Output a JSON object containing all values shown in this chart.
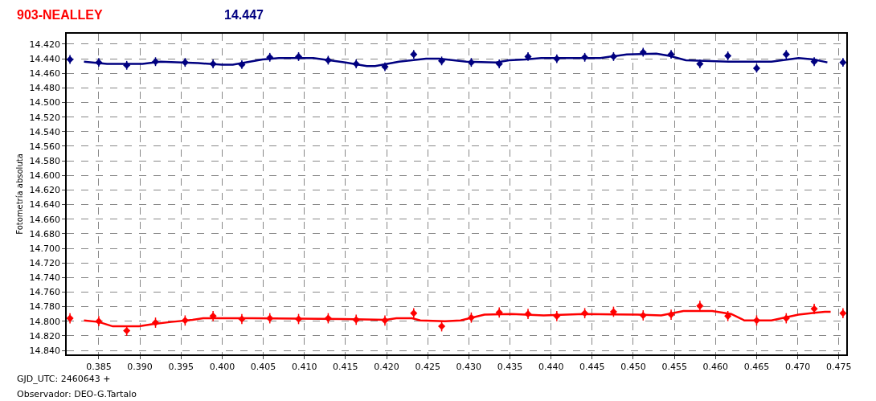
{
  "chart_data": {
    "type": "scatter",
    "title": "903-NEALLEY",
    "subtitle": "14.447",
    "ylabel": "Fotometría absoluta",
    "annotations": [
      "GJD_UTC: 2460643 +",
      "Observador: DEO-G.Tartalo"
    ],
    "xlim": [
      0.3811,
      0.4759
    ],
    "ylim": [
      14.8455,
      14.4057
    ],
    "xticks": [
      {
        "value": 0.385,
        "label": "0.385"
      },
      {
        "value": 0.39,
        "label": "0.390"
      },
      {
        "value": 0.395,
        "label": "0.395"
      },
      {
        "value": 0.4,
        "label": "0.400"
      },
      {
        "value": 0.405,
        "label": "0.405"
      },
      {
        "value": 0.41,
        "label": "0.410"
      },
      {
        "value": 0.415,
        "label": "0.415"
      },
      {
        "value": 0.42,
        "label": "0.420"
      },
      {
        "value": 0.425,
        "label": "0.425"
      },
      {
        "value": 0.43,
        "label": "0.430"
      },
      {
        "value": 0.435,
        "label": "0.435"
      },
      {
        "value": 0.44,
        "label": "0.440"
      },
      {
        "value": 0.445,
        "label": "0.445"
      },
      {
        "value": 0.45,
        "label": "0.450"
      },
      {
        "value": 0.455,
        "label": "0.455"
      },
      {
        "value": 0.46,
        "label": "0.460"
      },
      {
        "value": 0.465,
        "label": "0.465"
      },
      {
        "value": 0.47,
        "label": "0.470"
      },
      {
        "value": 0.475,
        "label": "0.475"
      }
    ],
    "yticks": [
      {
        "value": 14.42,
        "label": "14.420"
      },
      {
        "value": 14.44,
        "label": "14.440"
      },
      {
        "value": 14.46,
        "label": "14.460"
      },
      {
        "value": 14.48,
        "label": "14.480"
      },
      {
        "value": 14.5,
        "label": "14.500"
      },
      {
        "value": 14.52,
        "label": "14.520"
      },
      {
        "value": 14.54,
        "label": "14.540"
      },
      {
        "value": 14.56,
        "label": "14.560"
      },
      {
        "value": 14.58,
        "label": "14.580"
      },
      {
        "value": 14.6,
        "label": "14.600"
      },
      {
        "value": 14.62,
        "label": "14.620"
      },
      {
        "value": 14.64,
        "label": "14.640"
      },
      {
        "value": 14.66,
        "label": "14.660"
      },
      {
        "value": 14.68,
        "label": "14.680"
      },
      {
        "value": 14.7,
        "label": "14.700"
      },
      {
        "value": 14.72,
        "label": "14.720"
      },
      {
        "value": 14.74,
        "label": "14.740"
      },
      {
        "value": 14.76,
        "label": "14.760"
      },
      {
        "value": 14.78,
        "label": "14.780"
      },
      {
        "value": 14.8,
        "label": "14.800"
      },
      {
        "value": 14.82,
        "label": "14.820"
      },
      {
        "value": 14.84,
        "label": "14.840"
      }
    ],
    "grid": true,
    "series": [
      {
        "marker": "diamond",
        "color": "#000080",
        "x": [
          0.3815,
          0.385,
          0.3884,
          0.3919,
          0.3955,
          0.3989,
          0.4024,
          0.4058,
          0.4093,
          0.4129,
          0.4163,
          0.4198,
          0.4233,
          0.4267,
          0.4303,
          0.4337,
          0.4372,
          0.4407,
          0.4441,
          0.4476,
          0.4512,
          0.4546,
          0.4581,
          0.4615,
          0.465,
          0.4686,
          0.472,
          0.4755
        ],
        "values": [
          14.441,
          14.445,
          14.449,
          14.444,
          14.445,
          14.447,
          14.448,
          14.438,
          14.437,
          14.442,
          14.447,
          14.451,
          14.434,
          14.443,
          14.445,
          14.447,
          14.437,
          14.44,
          14.438,
          14.437,
          14.431,
          14.434,
          14.447,
          14.436,
          14.453,
          14.434,
          14.444,
          14.445
        ],
        "errors": [
          0.006,
          0.006,
          0.006,
          0.006,
          0.006,
          0.006,
          0.006,
          0.006,
          0.006,
          0.006,
          0.006,
          0.006,
          0.006,
          0.006,
          0.006,
          0.006,
          0.006,
          0.006,
          0.006,
          0.006,
          0.006,
          0.006,
          0.006,
          0.006,
          0.006,
          0.006,
          0.006,
          0.006
        ]
      },
      {
        "marker": "diamond",
        "color": "#ff0000",
        "x": [
          0.3815,
          0.385,
          0.3884,
          0.3919,
          0.3955,
          0.3989,
          0.4024,
          0.4058,
          0.4093,
          0.4129,
          0.4163,
          0.4198,
          0.4233,
          0.4267,
          0.4303,
          0.4337,
          0.4372,
          0.4407,
          0.4441,
          0.4476,
          0.4512,
          0.4546,
          0.4581,
          0.4615,
          0.465,
          0.4686,
          0.472,
          0.4755
        ],
        "values": [
          14.796,
          14.8,
          14.813,
          14.802,
          14.799,
          14.793,
          14.797,
          14.796,
          14.797,
          14.796,
          14.798,
          14.799,
          14.789,
          14.807,
          14.795,
          14.788,
          14.79,
          14.793,
          14.789,
          14.787,
          14.792,
          14.791,
          14.779,
          14.793,
          14.799,
          14.796,
          14.783,
          14.789
        ],
        "errors": [
          0.007,
          0.007,
          0.007,
          0.007,
          0.007,
          0.007,
          0.007,
          0.007,
          0.007,
          0.007,
          0.007,
          0.007,
          0.007,
          0.007,
          0.007,
          0.007,
          0.007,
          0.007,
          0.007,
          0.007,
          0.007,
          0.007,
          0.007,
          0.007,
          0.007,
          0.007,
          0.007,
          0.007
        ]
      },
      {
        "type": "line",
        "line_style": "solid",
        "color": "#000080",
        "x": [
          0.3832,
          0.385,
          0.386,
          0.3903,
          0.3925,
          0.3971,
          0.4,
          0.4013,
          0.4049,
          0.4069,
          0.4111,
          0.415,
          0.4176,
          0.4186,
          0.4215,
          0.4248,
          0.4264,
          0.4297,
          0.4333,
          0.4349,
          0.4368,
          0.4388,
          0.446,
          0.4492,
          0.4528,
          0.4544,
          0.4564,
          0.4616,
          0.4668,
          0.4701,
          0.472,
          0.4736
        ],
        "values": [
          14.444,
          14.446,
          14.447,
          14.447,
          14.444,
          14.446,
          14.448,
          14.448,
          14.441,
          14.439,
          14.439,
          14.445,
          14.45,
          14.45,
          14.444,
          14.44,
          14.44,
          14.444,
          14.445,
          14.442,
          14.441,
          14.439,
          14.439,
          14.434,
          14.433,
          14.436,
          14.442,
          14.444,
          14.444,
          14.439,
          14.441,
          14.445
        ]
      },
      {
        "type": "line",
        "line_style": "solid",
        "color": "#ff0000",
        "x": [
          0.3832,
          0.385,
          0.3867,
          0.3899,
          0.3916,
          0.3938,
          0.3964,
          0.3977,
          0.4036,
          0.4147,
          0.4199,
          0.4212,
          0.4231,
          0.4241,
          0.4271,
          0.429,
          0.4319,
          0.4352,
          0.4391,
          0.444,
          0.4505,
          0.4534,
          0.4561,
          0.4596,
          0.4619,
          0.4632,
          0.4635,
          0.4668,
          0.4701,
          0.4733,
          0.474
        ],
        "values": [
          14.799,
          14.801,
          14.807,
          14.807,
          14.804,
          14.801,
          14.798,
          14.796,
          14.796,
          14.797,
          14.798,
          14.796,
          14.796,
          14.799,
          14.8,
          14.799,
          14.791,
          14.79,
          14.792,
          14.79,
          14.791,
          14.792,
          14.786,
          14.786,
          14.79,
          14.797,
          14.799,
          14.799,
          14.791,
          14.787,
          14.787
        ]
      }
    ]
  }
}
